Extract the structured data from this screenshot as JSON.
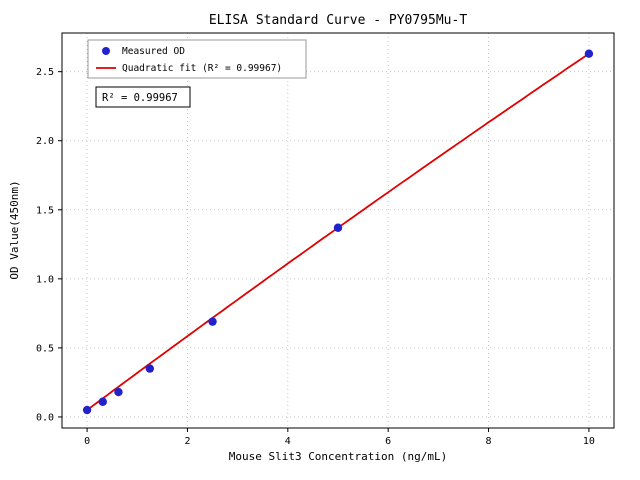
{
  "figure": {
    "background": "#ffffff"
  },
  "chart_data": {
    "type": "scatter",
    "title": "ELISA Standard Curve - PY0795Mu-T",
    "xlabel": "Mouse Slit3 Concentration (ng/mL)",
    "ylabel": "OD Value(450nm)",
    "xlim": [
      -0.5,
      10.5
    ],
    "ylim": [
      -0.08,
      2.78
    ],
    "xticks": [
      0,
      2,
      4,
      6,
      8,
      10
    ],
    "xtick_labels": [
      "0",
      "2",
      "4",
      "6",
      "8",
      "10"
    ],
    "yticks": [
      0,
      0.5,
      1,
      1.5,
      2,
      2.5
    ],
    "ytick_labels": [
      "0.0",
      "0.5",
      "1.0",
      "1.5",
      "2.0",
      "2.5"
    ],
    "grid": true,
    "grid_color": "#bbbbbb",
    "legend_position": "upper-left",
    "annotation": "R² = 0.99967",
    "series": [
      {
        "name": "Measured OD",
        "type": "scatter",
        "color": "#2222cc",
        "x": [
          0,
          0.3125,
          0.625,
          1.25,
          2.5,
          5,
          10
        ],
        "y": [
          0.05,
          0.11,
          0.18,
          0.35,
          0.69,
          1.37,
          2.63
        ]
      },
      {
        "name": "Quadratic fit (R² = 0.99967)",
        "type": "line",
        "color": "#e00000",
        "fit_coefficients": {
          "a": 0.05,
          "b": 0.27,
          "c": -0.0012
        },
        "x_range": [
          0,
          10
        ]
      }
    ]
  }
}
